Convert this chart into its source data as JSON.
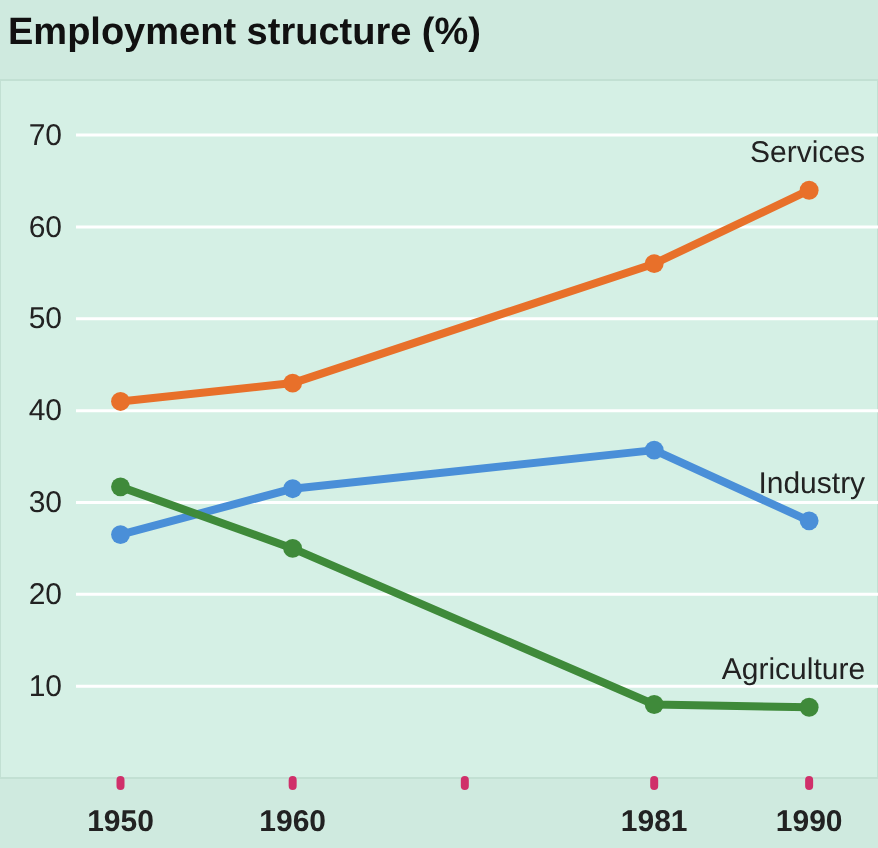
{
  "chart_data": {
    "type": "line",
    "title": "Employment structure (%)",
    "x": [
      1950,
      1960,
      1981,
      1990
    ],
    "series": [
      {
        "name": "Services",
        "color": "#e8702a",
        "values": [
          41,
          43,
          56,
          64
        ]
      },
      {
        "name": "Industry",
        "color": "#4a8fd8",
        "values": [
          26.5,
          31.5,
          35.7,
          28
        ]
      },
      {
        "name": "Agriculture",
        "color": "#3f8a3a",
        "values": [
          31.7,
          25,
          8,
          7.7
        ]
      }
    ],
    "xlim": [
      1943,
      1994
    ],
    "ylim": [
      0,
      76
    ],
    "xticks": [
      1950,
      1960,
      {
        "value": 1970,
        "label": null
      },
      1981,
      1990
    ],
    "yticks": [
      10,
      20,
      30,
      40,
      50,
      60,
      70
    ],
    "grid": "y",
    "legend": false,
    "marker": "circle",
    "line_style": "solid"
  }
}
